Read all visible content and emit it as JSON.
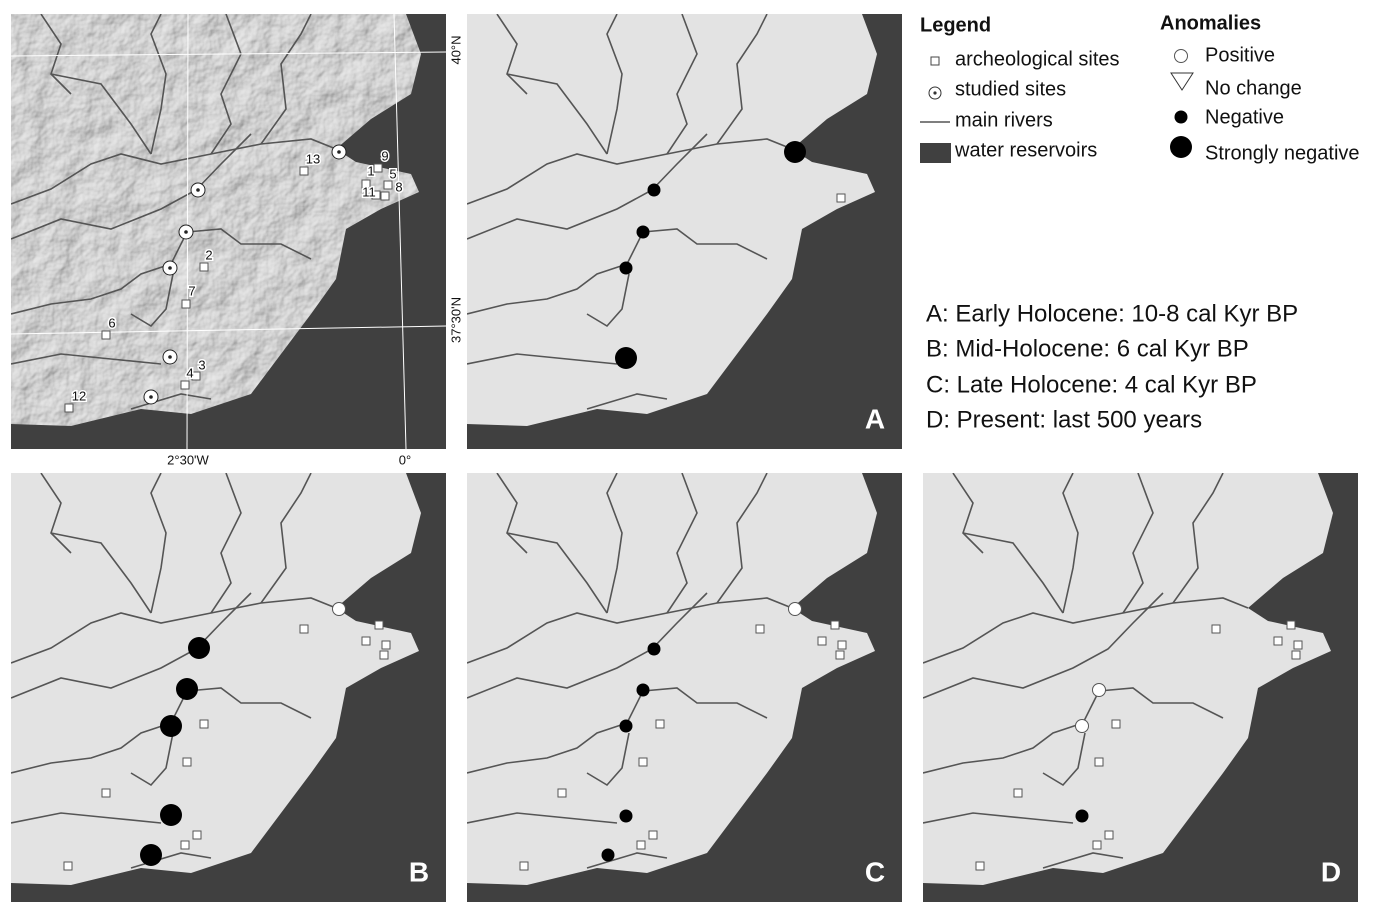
{
  "legend": {
    "title": "Legend",
    "items": [
      "archeological sites",
      "studied sites",
      "main rivers",
      "water reservoirs"
    ]
  },
  "anomalies": {
    "title": "Anomalies",
    "items": [
      "Positive",
      "No change",
      "Negative",
      "Strongly negative"
    ]
  },
  "periods": [
    "A: Early Holocene: 10-8 cal Kyr BP",
    "B: Mid-Holocene: 6 cal Kyr BP",
    "C: Late  Holocene: 4 cal Kyr BP",
    "D: Present: last 500 years"
  ],
  "panels": [
    "A",
    "B",
    "C",
    "D"
  ],
  "coordinates": {
    "lat_top": "40°N",
    "lat_bottom": "37°30'N",
    "lon_left": "2°30'W",
    "lon_right": "0°"
  },
  "site_labels": [
    "1",
    "2",
    "3",
    "4",
    "5",
    "6",
    "7",
    "8",
    "9",
    "11",
    "12",
    "13"
  ]
}
